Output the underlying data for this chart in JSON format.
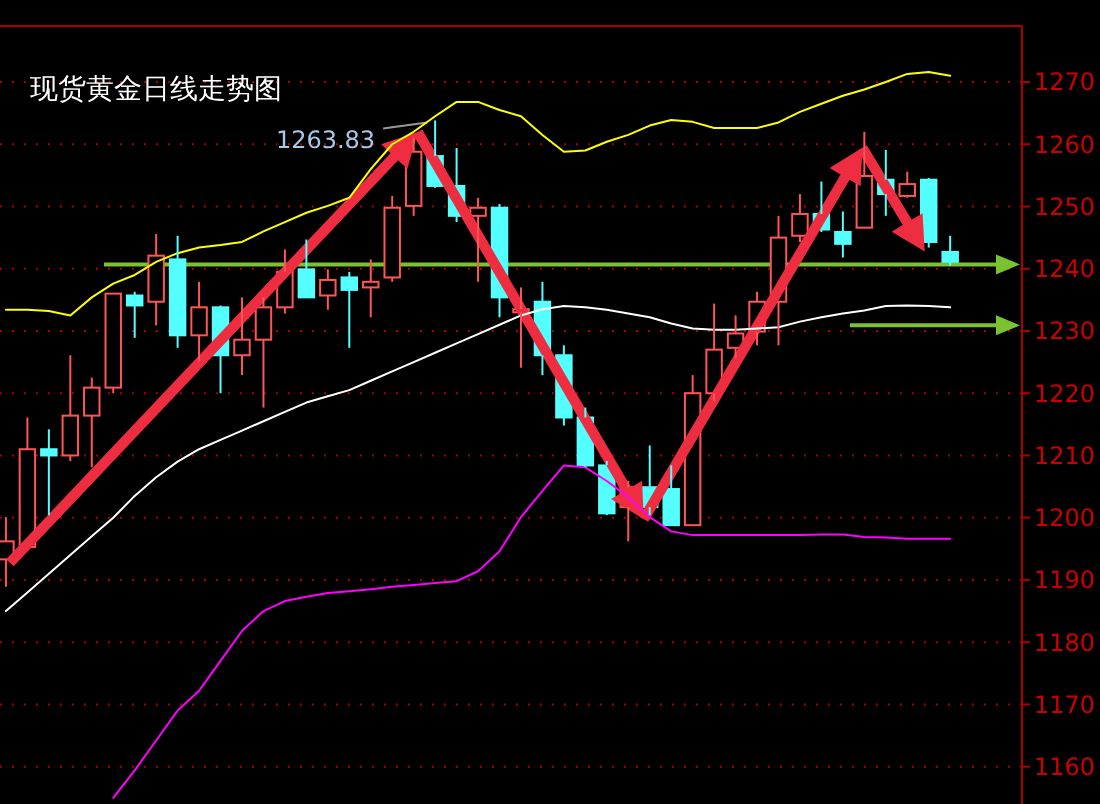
{
  "chart_data": {
    "type": "candlestick",
    "title": "现货黄金日线走势图",
    "categories": [
      null,
      null,
      null,
      null,
      null,
      null,
      null,
      null,
      null,
      null,
      null,
      null,
      null,
      null,
      null,
      null,
      null,
      null,
      null,
      null,
      null,
      null,
      null,
      null,
      null,
      null,
      null,
      null,
      null,
      null,
      null,
      null,
      null,
      null,
      null,
      null,
      null,
      null,
      null,
      null,
      null,
      null,
      null,
      null,
      null
    ],
    "ylim": [
      1154,
      1279
    ],
    "yticks": [
      1160,
      1170,
      1180,
      1190,
      1200,
      1210,
      1220,
      1230,
      1240,
      1250,
      1260,
      1270
    ],
    "tick_labels": "y",
    "grid": "y",
    "ohlc": [
      [
        1193.3,
        1200.1,
        1188.9,
        1196.2
      ],
      [
        1195.3,
        1216.1,
        1195.3,
        1211.0
      ],
      [
        1211.0,
        1214.2,
        1200.4,
        1210.0
      ],
      [
        1210.0,
        1226.1,
        1209.1,
        1216.4
      ],
      [
        1216.4,
        1222.5,
        1208.1,
        1220.9
      ],
      [
        1220.9,
        1236.0,
        1220.0,
        1236.0
      ],
      [
        1235.7,
        1236.3,
        1228.9,
        1234.1
      ],
      [
        1234.7,
        1245.6,
        1230.9,
        1242.1
      ],
      [
        1241.5,
        1245.3,
        1227.3,
        1229.3
      ],
      [
        1229.3,
        1237.9,
        1225.1,
        1233.8
      ],
      [
        1233.8,
        1234.1,
        1220.0,
        1226.1
      ],
      [
        1226.1,
        1235.4,
        1222.9,
        1228.6
      ],
      [
        1228.6,
        1235.4,
        1217.7,
        1233.8
      ],
      [
        1233.8,
        1243.1,
        1232.8,
        1239.5
      ],
      [
        1239.9,
        1244.7,
        1235.4,
        1235.4
      ],
      [
        1235.7,
        1239.9,
        1233.4,
        1238.2
      ],
      [
        1238.6,
        1239.5,
        1227.3,
        1236.6
      ],
      [
        1237.0,
        1241.5,
        1232.2,
        1237.9
      ],
      [
        1238.6,
        1251.7,
        1237.9,
        1249.8
      ],
      [
        1250.1,
        1261.0,
        1248.5,
        1258.8
      ],
      [
        1258.1,
        1263.83,
        1253.0,
        1253.3
      ],
      [
        1253.3,
        1259.4,
        1247.5,
        1248.5
      ],
      [
        1248.5,
        1251.4,
        1237.9,
        1249.8
      ],
      [
        1249.8,
        1250.4,
        1232.2,
        1235.4
      ],
      [
        1233.0,
        1237.0,
        1224.1,
        1233.5
      ],
      [
        1234.7,
        1237.9,
        1222.9,
        1226.1
      ],
      [
        1226.1,
        1227.7,
        1214.8,
        1216.1
      ],
      [
        1216.1,
        1217.7,
        1208.1,
        1208.4
      ],
      [
        1208.4,
        1209.1,
        1200.4,
        1200.7
      ],
      [
        1201.7,
        1205.9,
        1196.2,
        1204.9
      ],
      [
        1204.9,
        1211.6,
        1200.4,
        1201.7
      ],
      [
        1204.6,
        1208.4,
        1198.8,
        1198.8
      ],
      [
        1198.8,
        1222.9,
        1198.8,
        1220.0
      ],
      [
        1220.0,
        1234.4,
        1218.7,
        1227.0
      ],
      [
        1227.3,
        1232.5,
        1225.7,
        1229.6
      ],
      [
        1229.9,
        1236.3,
        1227.7,
        1234.7
      ],
      [
        1234.7,
        1248.5,
        1227.7,
        1245.0
      ],
      [
        1245.3,
        1252.0,
        1244.3,
        1248.8
      ],
      [
        1248.8,
        1254.0,
        1245.9,
        1246.3
      ],
      [
        1245.9,
        1249.2,
        1241.8,
        1244.0
      ],
      [
        1246.6,
        1262.0,
        1246.6,
        1254.9
      ],
      [
        1254.3,
        1259.1,
        1248.5,
        1252.0
      ],
      [
        1251.7,
        1255.6,
        1251.4,
        1253.6
      ],
      [
        1254.3,
        1254.6,
        1243.4,
        1244.3
      ],
      [
        1242.7,
        1245.3,
        1240.5,
        1241.1
      ]
    ],
    "colors": [
      "#ff5555",
      "#ff5555",
      "#54ffff",
      "#ff5555",
      "#ff5555",
      "#ff5555",
      "#54ffff",
      "#ff5555",
      "#54ffff",
      "#ff5555",
      "#54ffff",
      "#ff5555",
      "#ff5555",
      "#ff5555",
      "#54ffff",
      "#ff5555",
      "#54ffff",
      "#ff5555",
      "#ff5555",
      "#ff5555",
      "#54ffff",
      "#54ffff",
      "#ff5555",
      "#54ffff",
      "#ff5555",
      "#54ffff",
      "#54ffff",
      "#54ffff",
      "#54ffff",
      "#ff5555",
      "#54ffff",
      "#54ffff",
      "#ff5555",
      "#ff5555",
      "#ff5555",
      "#ff5555",
      "#ff5555",
      "#ff5555",
      "#54ffff",
      "#54ffff",
      "#ff5555",
      "#54ffff",
      "#ff5555",
      "#54ffff",
      "#54ffff"
    ],
    "series": [
      {
        "type": "line",
        "color": "#ffff00",
        "values": [
          1233.4,
          1233.4,
          1233.2,
          1232.5,
          1235.4,
          1237.6,
          1239,
          1241.1,
          1242.5,
          1243.4,
          1243.8,
          1244.3,
          1246,
          1247.5,
          1249,
          1250.1,
          1251.4,
          1256,
          1260,
          1262,
          1264.5,
          1266.8,
          1266.8,
          1265.5,
          1264.5,
          1261.5,
          1258.8,
          1259,
          1260.4,
          1261.5,
          1263,
          1263.9,
          1263.6,
          1262.6,
          1262.6,
          1262.6,
          1263.5,
          1265.2,
          1266.5,
          1267.8,
          1268.8,
          1270,
          1271.3,
          1271.6,
          1271
        ]
      },
      {
        "type": "line",
        "color": "#ffffff",
        "values": [
          1185,
          1188,
          1191,
          1194,
          1197,
          1200,
          1203.5,
          1206.5,
          1209,
          1211,
          1212.5,
          1214,
          1215.5,
          1217,
          1218.5,
          1219.5,
          1220.5,
          1222,
          1223.5,
          1225,
          1226.5,
          1228,
          1229.5,
          1231,
          1232.5,
          1233.5,
          1234,
          1233.8,
          1233.4,
          1232.8,
          1232.2,
          1231.2,
          1230.4,
          1230.2,
          1230.2,
          1230.4,
          1230.6,
          1231.5,
          1232.2,
          1232.8,
          1233.3,
          1234,
          1234.1,
          1234,
          1233.8
        ]
      },
      {
        "type": "line",
        "color": "#ff00ff",
        "values": [
          null,
          null,
          null,
          null,
          null,
          1155,
          1159.4,
          1164.2,
          1169,
          1172.2,
          1177,
          1181.8,
          1185,
          1186.6,
          1187.3,
          1187.9,
          1188.2,
          1188.5,
          1188.9,
          1189.2,
          1189.5,
          1189.8,
          1191.4,
          1194.6,
          1200.1,
          1204.3,
          1208.4,
          1208.1,
          1205.9,
          1203.3,
          1200.1,
          1197.8,
          1197.2,
          1197.2,
          1197.2,
          1197.2,
          1197.2,
          1197.2,
          1197.3,
          1197.3,
          1196.9,
          1196.8,
          1196.6,
          1196.6,
          1196.6
        ]
      }
    ],
    "ref_lines": [
      {
        "axis": "y",
        "value": 1240.7,
        "color": "#7ac231"
      },
      {
        "axis": "y",
        "value": 1230.9,
        "color": "#7ac231"
      }
    ],
    "annotations": [
      "1263.83"
    ]
  }
}
